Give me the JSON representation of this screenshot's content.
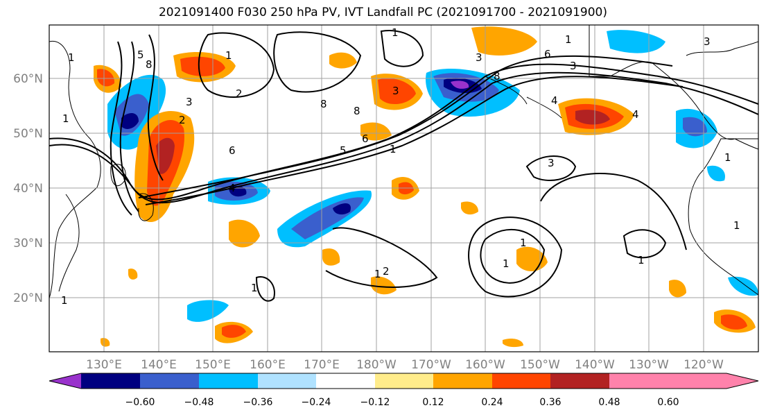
{
  "title": "2021091400 F030 250 hPa PV, IVT Landfall PC (2021091700 - 2021091900)",
  "lat_labels": [
    "60°N",
    "50°N",
    "40°N",
    "30°N",
    "20°N"
  ],
  "lon_labels": [
    "130°E",
    "140°E",
    "150°E",
    "160°E",
    "170°E",
    "180°W",
    "170°W",
    "160°W",
    "150°W",
    "140°W",
    "130°W",
    "120°W"
  ],
  "colorbar": {
    "ticks": [
      "−0.60",
      "−0.48",
      "−0.36",
      "−0.24",
      "−0.12",
      "0.12",
      "0.24",
      "0.36",
      "0.48",
      "0.60"
    ],
    "colors": [
      "#9932cc",
      "#000080",
      "#3a5fcd",
      "#00bfff",
      "#b0e2ff",
      "#ffffff",
      "#ffec8b",
      "#ffa500",
      "#ff4500",
      "#b22222",
      "#ff82ab"
    ]
  },
  "contour_labels": [
    "1",
    "2",
    "3",
    "4",
    "5",
    "6",
    "8"
  ],
  "colors": {
    "land_line": "#000000",
    "grid": "#a0a0a0",
    "contour": "#000000"
  }
}
